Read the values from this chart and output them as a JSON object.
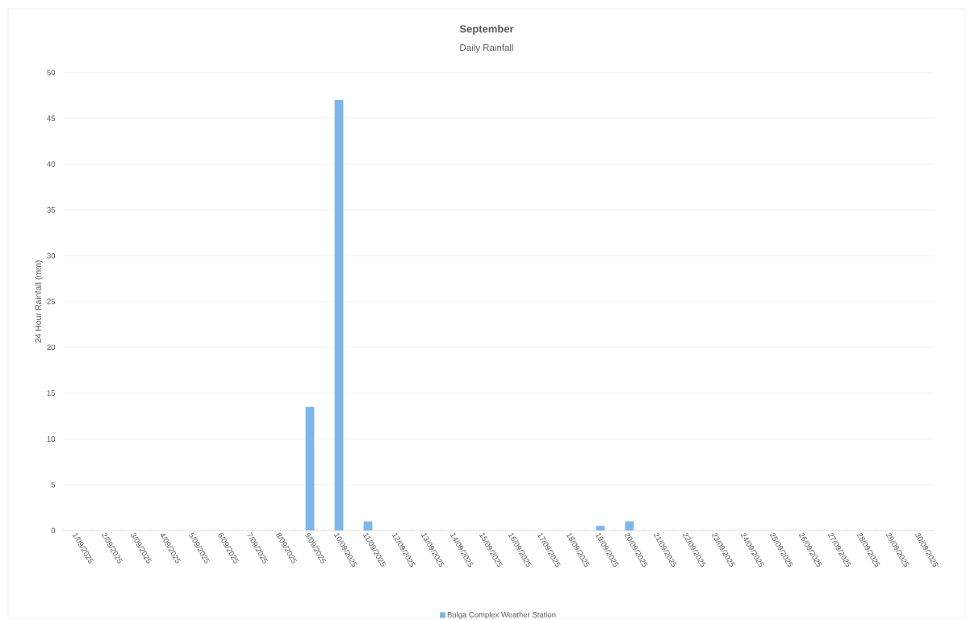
{
  "chart_data": {
    "type": "bar",
    "title": "September",
    "subtitle": "Daily Rainfall",
    "ylabel": "24 Hour Rainfall (mm)",
    "categories": [
      "1/09/2025",
      "2/09/2025",
      "3/09/2025",
      "4/09/2025",
      "5/09/2025",
      "6/09/2025",
      "7/09/2025",
      "8/09/2025",
      "9/09/2025",
      "10/09/2025",
      "11/09/2025",
      "12/09/2025",
      "13/09/2025",
      "14/09/2025",
      "15/09/2025",
      "16/09/2025",
      "17/09/2025",
      "18/09/2025",
      "19/09/2025",
      "20/09/2025",
      "21/09/2025",
      "22/09/2025",
      "23/09/2025",
      "24/09/2025",
      "25/09/2025",
      "26/09/2025",
      "27/09/2025",
      "28/09/2025",
      "29/09/2025",
      "30/09/2025"
    ],
    "series": [
      {
        "name": "Bulga Complex Weather Station",
        "color": "#7eb6ec",
        "values": [
          0,
          0,
          0,
          0,
          0,
          0,
          0,
          0,
          13.5,
          47,
          1,
          0,
          0,
          0,
          0,
          0,
          0,
          0,
          0.5,
          1,
          0,
          0,
          0,
          0,
          0,
          0,
          0,
          0,
          0,
          0
        ]
      }
    ],
    "ylim": [
      0,
      50
    ],
    "yticks": [
      0,
      5,
      10,
      15,
      20,
      25,
      30,
      35,
      40,
      45,
      50
    ],
    "grid": "y",
    "legend": "bottom"
  }
}
